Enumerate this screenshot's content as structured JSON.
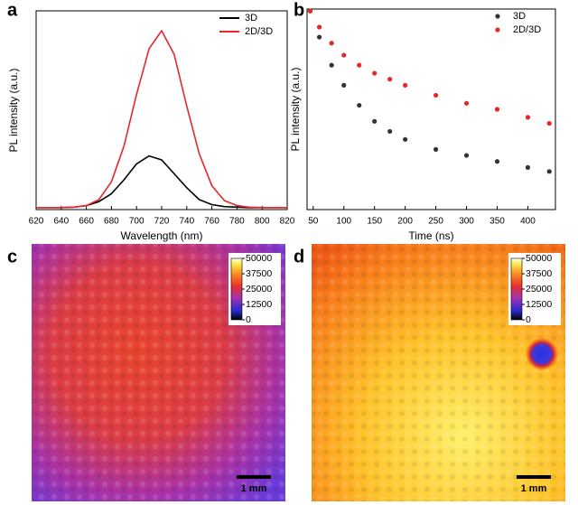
{
  "chart_data": [
    {
      "type": "line",
      "panel": "a",
      "x_label": "Wavelength (nm)",
      "y_label": "PL intensity (a.u.)",
      "x": [
        620,
        630,
        640,
        650,
        660,
        670,
        680,
        690,
        700,
        710,
        720,
        730,
        740,
        750,
        760,
        770,
        780,
        790,
        800,
        810,
        820
      ],
      "xlim": [
        620,
        820
      ],
      "xticks": [
        620,
        640,
        660,
        680,
        700,
        720,
        740,
        760,
        780,
        800,
        820
      ],
      "ylim": [
        0,
        1
      ],
      "legend": "upper right",
      "series": [
        {
          "name": "3D",
          "color": "#000000",
          "values": [
            0.01,
            0.01,
            0.01,
            0.012,
            0.02,
            0.04,
            0.08,
            0.15,
            0.23,
            0.27,
            0.25,
            0.18,
            0.11,
            0.05,
            0.025,
            0.015,
            0.012,
            0.01,
            0.01,
            0.01,
            0.01
          ]
        },
        {
          "name": "2D/3D",
          "color": "#e8262a",
          "values": [
            0.01,
            0.01,
            0.01,
            0.012,
            0.02,
            0.05,
            0.14,
            0.32,
            0.58,
            0.81,
            0.9,
            0.78,
            0.52,
            0.28,
            0.12,
            0.045,
            0.02,
            0.012,
            0.01,
            0.01,
            0.01
          ]
        }
      ]
    },
    {
      "type": "scatter",
      "panel": "b",
      "x_label": "Time (ns)",
      "y_label": "PL intensity (a.u.)",
      "x": [
        45,
        60,
        80,
        100,
        125,
        150,
        175,
        200,
        250,
        300,
        350,
        400,
        435
      ],
      "xlim": [
        40,
        445
      ],
      "xticks": [
        50,
        100,
        150,
        200,
        250,
        300,
        350,
        400
      ],
      "ylim": [
        0,
        1
      ],
      "legend": "upper right",
      "series": [
        {
          "name": "3D",
          "color": "#333333",
          "values": [
            0.99,
            0.86,
            0.72,
            0.62,
            0.52,
            0.44,
            0.39,
            0.35,
            0.3,
            0.27,
            0.24,
            0.21,
            0.19
          ]
        },
        {
          "name": "2D/3D",
          "color": "#e8262a",
          "values": [
            0.99,
            0.91,
            0.83,
            0.77,
            0.72,
            0.68,
            0.65,
            0.62,
            0.57,
            0.53,
            0.5,
            0.46,
            0.43
          ]
        }
      ]
    }
  ],
  "images": [
    {
      "panel": "c",
      "colorbar_ticks": [
        50000,
        37500,
        25000,
        12500,
        0
      ],
      "scale_bar": "1 mm"
    },
    {
      "panel": "d",
      "colorbar_ticks": [
        50000,
        37500,
        25000,
        12500,
        0
      ],
      "scale_bar": "1 mm"
    }
  ]
}
